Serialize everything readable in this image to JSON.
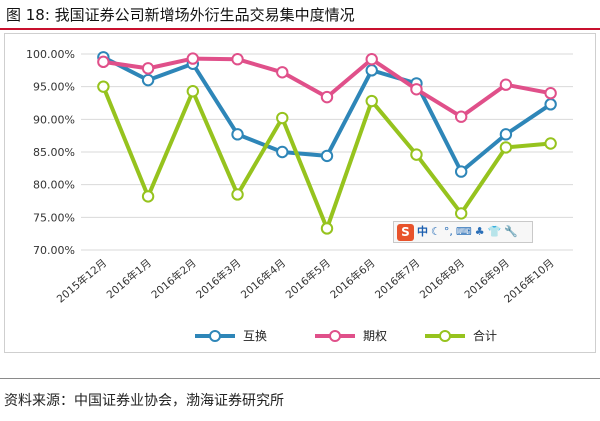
{
  "figure": {
    "title": "图 18:  我国证券公司新增场外衍生品交易集中度情况",
    "source": "资料来源：中国证券业协会，渤海证券研究所"
  },
  "ime_toolbar": {
    "logo": "S",
    "lang": "中",
    "items": [
      "☾",
      "°,",
      "⌨",
      "♣",
      "👕",
      "🔧"
    ]
  },
  "chart_data": {
    "type": "line",
    "title": "",
    "xlabel": "",
    "ylabel": "",
    "ylim": [
      70,
      100
    ],
    "yticks": [
      100,
      95,
      90,
      85,
      80,
      75,
      70
    ],
    "ytick_labels": [
      "100.00%",
      "95.00%",
      "90.00%",
      "85.00%",
      "80.00%",
      "75.00%",
      "70.00%"
    ],
    "categories": [
      "2015年12月",
      "2016年1月",
      "2016年2月",
      "2016年3月",
      "2016年4月",
      "2016年5月",
      "2016年6月",
      "2016年7月",
      "2016年8月",
      "2016年9月",
      "2016年10月"
    ],
    "grid": true,
    "legend_position": "bottom",
    "series": [
      {
        "name": "互换",
        "color": "#2e86b8",
        "values": [
          99.5,
          96.0,
          98.5,
          87.7,
          85.0,
          84.4,
          97.5,
          95.5,
          82.0,
          87.7,
          92.3
        ]
      },
      {
        "name": "期权",
        "color": "#e0508a",
        "values": [
          98.8,
          97.8,
          99.3,
          99.2,
          97.2,
          93.4,
          99.2,
          94.6,
          90.4,
          95.3,
          94.0
        ]
      },
      {
        "name": "合计",
        "color": "#96c31e",
        "values": [
          95.0,
          78.2,
          94.3,
          78.5,
          90.2,
          73.3,
          92.8,
          84.6,
          75.6,
          85.7,
          86.3
        ]
      }
    ]
  }
}
